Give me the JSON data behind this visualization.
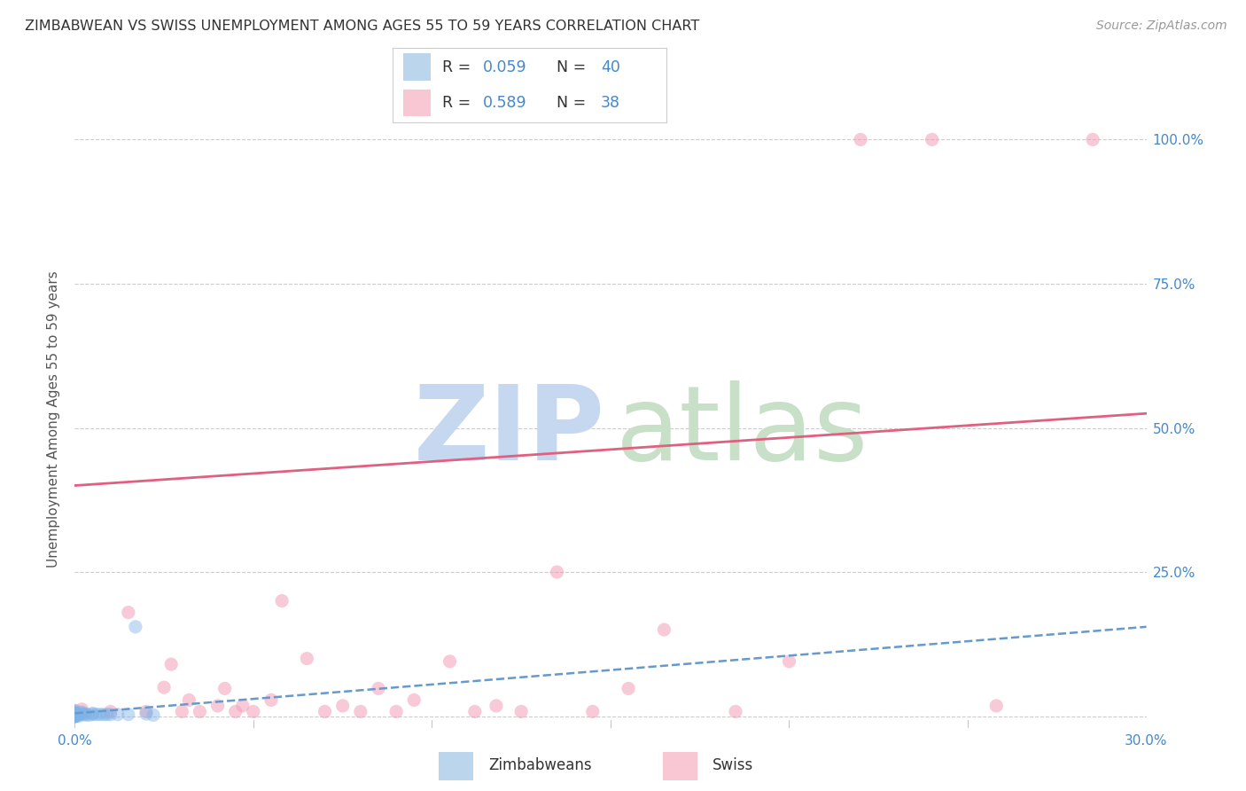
{
  "title": "ZIMBABWEAN VS SWISS UNEMPLOYMENT AMONG AGES 55 TO 59 YEARS CORRELATION CHART",
  "source": "Source: ZipAtlas.com",
  "ylabel": "Unemployment Among Ages 55 to 59 years",
  "xlim": [
    0.0,
    0.3
  ],
  "ylim": [
    -0.02,
    1.05
  ],
  "ytick_positions": [
    0.0,
    0.25,
    0.5,
    0.75,
    1.0
  ],
  "yticklabels": [
    "",
    "25.0%",
    "50.0%",
    "75.0%",
    "100.0%"
  ],
  "xtick_positions": [
    0.0,
    0.3
  ],
  "xticklabels": [
    "0.0%",
    "30.0%"
  ],
  "background_color": "#ffffff",
  "grid_color": "#cccccc",
  "zimbabwean_color": "#7fb3e8",
  "swiss_color": "#f4a0b8",
  "zimbabwean_marker_size": 120,
  "swiss_marker_size": 120,
  "zimbabwean_alpha": 0.45,
  "swiss_alpha": 0.55,
  "zim_trend_color": "#6699cc",
  "swiss_trend_color": "#e06080",
  "zim_trend_x": [
    0.0,
    0.3
  ],
  "zim_trend_y": [
    0.005,
    0.155
  ],
  "swiss_trend_x": [
    0.0,
    0.3
  ],
  "swiss_trend_y": [
    0.4,
    0.525
  ],
  "zimbabwean_x": [
    0.0,
    0.0,
    0.0,
    0.0,
    0.0,
    0.0,
    0.0,
    0.0,
    0.0,
    0.0,
    0.0,
    0.0,
    0.0,
    0.0,
    0.0,
    0.0,
    0.0,
    0.0,
    0.0,
    0.0,
    0.001,
    0.001,
    0.002,
    0.002,
    0.002,
    0.003,
    0.003,
    0.004,
    0.005,
    0.005,
    0.006,
    0.007,
    0.008,
    0.009,
    0.01,
    0.012,
    0.015,
    0.017,
    0.02,
    0.022
  ],
  "zimbabwean_y": [
    0.0,
    0.0,
    0.0,
    0.0,
    0.0,
    0.0,
    0.0,
    0.0,
    0.0,
    0.002,
    0.002,
    0.003,
    0.003,
    0.004,
    0.004,
    0.005,
    0.005,
    0.006,
    0.007,
    0.009,
    0.0,
    0.002,
    0.003,
    0.005,
    0.007,
    0.002,
    0.004,
    0.002,
    0.003,
    0.005,
    0.003,
    0.003,
    0.003,
    0.003,
    0.003,
    0.003,
    0.003,
    0.155,
    0.004,
    0.002
  ],
  "swiss_x": [
    0.0,
    0.002,
    0.01,
    0.015,
    0.02,
    0.025,
    0.027,
    0.03,
    0.032,
    0.035,
    0.04,
    0.042,
    0.045,
    0.047,
    0.05,
    0.055,
    0.058,
    0.065,
    0.07,
    0.075,
    0.08,
    0.085,
    0.09,
    0.095,
    0.105,
    0.112,
    0.118,
    0.125,
    0.135,
    0.145,
    0.155,
    0.165,
    0.185,
    0.2,
    0.22,
    0.24,
    0.258,
    0.285
  ],
  "swiss_y": [
    0.01,
    0.012,
    0.008,
    0.18,
    0.008,
    0.05,
    0.09,
    0.008,
    0.028,
    0.008,
    0.018,
    0.048,
    0.008,
    0.018,
    0.008,
    0.028,
    0.2,
    0.1,
    0.008,
    0.018,
    0.008,
    0.048,
    0.008,
    0.028,
    0.095,
    0.008,
    0.018,
    0.008,
    0.25,
    0.008,
    0.048,
    0.15,
    0.008,
    0.095,
    1.0,
    1.0,
    0.018,
    1.0
  ],
  "watermark_zip_color": "#c5d8f0",
  "watermark_atlas_color": "#c8dfc8",
  "legend_zim_color": "#aacce8",
  "legend_swiss_color": "#f8b8c8",
  "title_fontsize": 11.5,
  "tick_fontsize": 11,
  "source_fontsize": 10,
  "ylabel_fontsize": 11
}
